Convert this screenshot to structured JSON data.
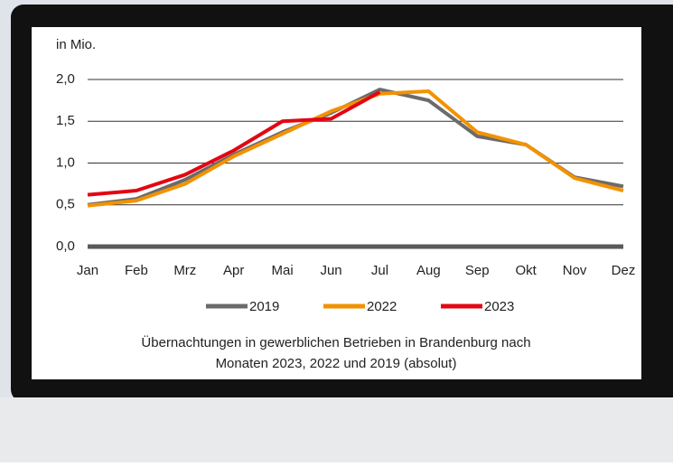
{
  "chart_data": {
    "type": "line",
    "ylabel": "in Mio.",
    "title": [
      "Übernachtungen in gewerblichen Betrieben in Brandenburg nach",
      "Monaten 2023, 2022 und 2019 (absolut)"
    ],
    "categories": [
      "Jan",
      "Feb",
      "Mrz",
      "Apr",
      "Mai",
      "Jun",
      "Jul",
      "Aug",
      "Sep",
      "Okt",
      "Nov",
      "Dez"
    ],
    "series": [
      {
        "name": "2019",
        "color": "#6b6b6b",
        "values": [
          0.5,
          0.57,
          0.8,
          1.1,
          1.37,
          1.6,
          1.88,
          1.75,
          1.32,
          1.22,
          0.83,
          0.72
        ]
      },
      {
        "name": "2022",
        "color": "#f39200",
        "values": [
          0.49,
          0.55,
          0.75,
          1.08,
          1.35,
          1.62,
          1.83,
          1.86,
          1.37,
          1.22,
          0.82,
          0.67
        ]
      },
      {
        "name": "2023",
        "color": "#e30613",
        "values": [
          0.62,
          0.67,
          0.86,
          1.15,
          1.5,
          1.53,
          1.85,
          null,
          null,
          null,
          null,
          null
        ]
      }
    ],
    "ylim": [
      0,
      2
    ],
    "yticks": [
      {
        "value": 0,
        "label": "0,0"
      },
      {
        "value": 0.5,
        "label": "0,5"
      },
      {
        "value": 1,
        "label": "1,0"
      },
      {
        "value": 1.5,
        "label": "1,5"
      },
      {
        "value": 2,
        "label": "2,0"
      }
    ],
    "grid": true
  }
}
